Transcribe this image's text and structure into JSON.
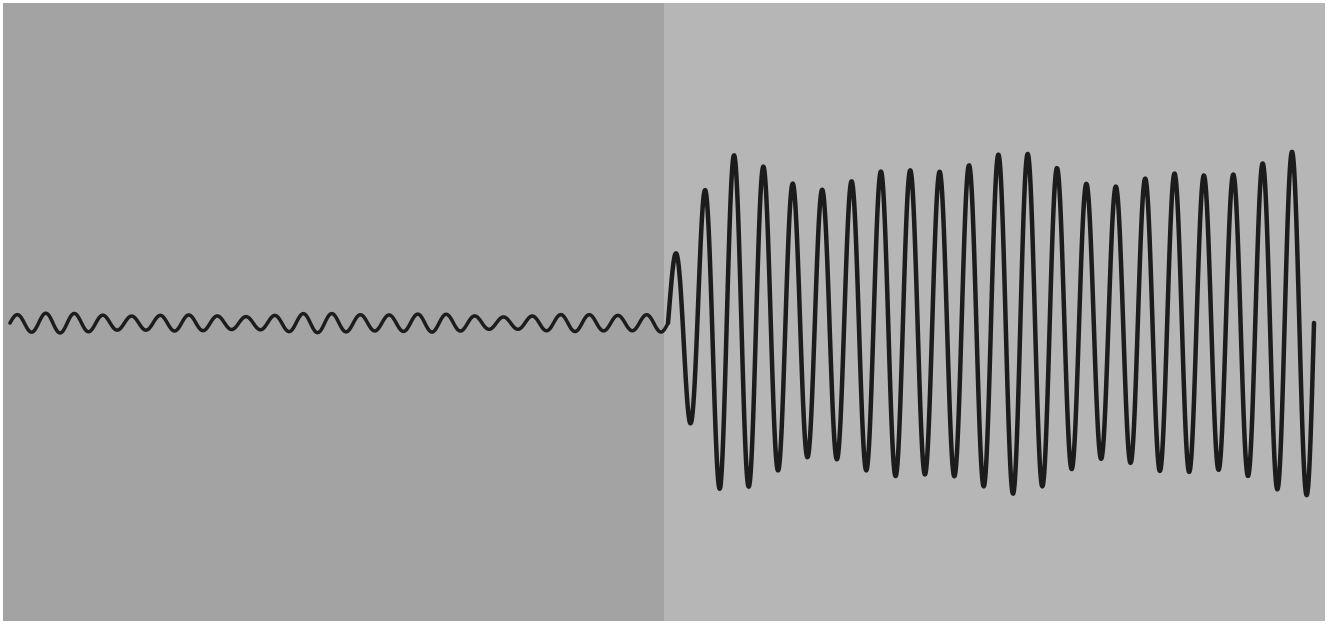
{
  "colors": {
    "page_background": "#ffffff",
    "left_panel": "#a3a3a3",
    "right_panel": "#b6b6b6",
    "waveform": "#1c1c1c"
  },
  "diagram": {
    "type": "waveform",
    "segments": [
      {
        "name": "low-amplitude",
        "relative_amplitude": 0.05,
        "cycles": 23
      },
      {
        "name": "high-amplitude",
        "relative_amplitude": 1.0,
        "cycles": 22
      }
    ]
  }
}
